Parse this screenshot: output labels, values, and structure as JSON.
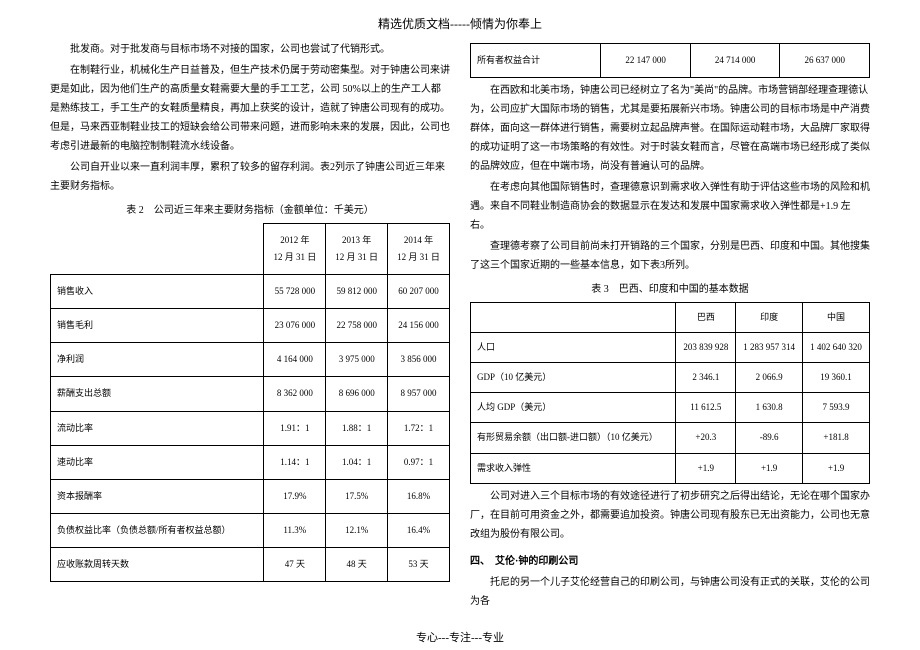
{
  "header": "精选优质文档-----倾情为你奉上",
  "footer": "专心---专注---专业",
  "left": {
    "p1": "批发商。对于批发商与目标市场不对接的国家，公司也尝试了代销形式。",
    "p2": "在制鞋行业，机械化生产日益普及，但生产技术仍属于劳动密集型。对于钟唐公司来讲更是如此，因为他们生产的高质量女鞋需要大量的手工工艺，公司 50%以上的生产工人都是熟练技工，手工生产的女鞋质量精良，再加上获奖的设计，造就了钟唐公司现有的成功。但是，马来西亚制鞋业技工的短缺会给公司带来问题，进而影响未来的发展，因此，公司也考虑引进最新的电脑控制制鞋流水线设备。",
    "p3": "公司自开业以来一直利润丰厚，累积了较多的留存利润。表2列示了钟唐公司近三年来主要财务指标。",
    "title": "表 2　公司近三年来主要财务指标（金额单位：千美元）",
    "t2": {
      "rows": [
        [
          "",
          "2012 年\n12 月 31 日",
          "2013 年\n12 月 31 日",
          "2014 年\n12 月 31 日"
        ],
        [
          "销售收入",
          "55 728 000",
          "59 812 000",
          "60 207 000"
        ],
        [
          "销售毛利",
          "23 076 000",
          "22 758 000",
          "24 156 000"
        ],
        [
          "净利润",
          "4 164 000",
          "3 975 000",
          "3 856 000"
        ],
        [
          "薪酬支出总额",
          "8 362 000",
          "8 696 000",
          "8 957 000"
        ],
        [
          "流动比率",
          "1.91：1",
          "1.88：1",
          "1.72：1"
        ],
        [
          "速动比率",
          "1.14：1",
          "1.04：1",
          "0.97：1"
        ],
        [
          "资本报酬率",
          "17.9%",
          "17.5%",
          "16.8%"
        ],
        [
          "负债权益比率（负债总额/所有者权益总额）",
          "11.3%",
          "12.1%",
          "16.4%"
        ],
        [
          "应收账款周转天数",
          "47 天",
          "48 天",
          "53 天"
        ]
      ]
    }
  },
  "right": {
    "toprow": [
      "所有者权益合计",
      "22 147 000",
      "24 714 000",
      "26 637 000"
    ],
    "p1": "在西欧和北美市场，钟唐公司已经树立了名为\"美尚\"的品牌。市场营销部经理查理德认为，公司应扩大国际市场的销售，尤其是要拓展新兴市场。钟唐公司的目标市场是中产消费群体，面向这一群体进行销售，需要树立起品牌声誉。在国际运动鞋市场，大品牌厂家取得的成功证明了这一市场策略的有效性。对于时装女鞋而言，尽管在高端市场已经形成了类似的品牌效应，但在中端市场，尚没有普遍认可的品牌。",
    "p2": "在考虑向其他国际销售时，查理德意识到需求收入弹性有助于评估这些市场的风险和机遇。来自不同鞋业制造商协会的数据显示在发达和发展中国家需求收入弹性都是+1.9 左右。",
    "p3": "查理德考察了公司目前尚未打开销路的三个国家，分别是巴西、印度和中国。其他搜集了这三个国家近期的一些基本信息，如下表3所列。",
    "title": "表 3　巴西、印度和中国的基本数据",
    "t3": {
      "rows": [
        [
          "",
          "巴西",
          "印度",
          "中国"
        ],
        [
          "人口",
          "203 839 928",
          "1 283 957 314",
          "1 402 640 320"
        ],
        [
          "GDP（10 亿美元）",
          "2 346.1",
          "2 066.9",
          "19 360.1"
        ],
        [
          "人均 GDP（美元）",
          "11 612.5",
          "1 630.8",
          "7 593.9"
        ],
        [
          "有形贸易余额（出口额-进口额）（10 亿美元）",
          "+20.3",
          "-89.6",
          "+181.8"
        ],
        [
          "需求收入弹性",
          "+1.9",
          "+1.9",
          "+1.9"
        ]
      ]
    },
    "p4": "公司对进入三个目标市场的有效途径进行了初步研究之后得出结论，无论在哪个国家办厂，在目前可用资金之外，都需要追加投资。钟唐公司现有股东已无出资能力，公司也无意改组为股份有限公司。",
    "sect": "四、　艾伦·钟的印刷公司",
    "p5": "托尼的另一个儿子艾伦经营自己的印刷公司，与钟唐公司没有正式的关联，艾伦的公司为各"
  }
}
